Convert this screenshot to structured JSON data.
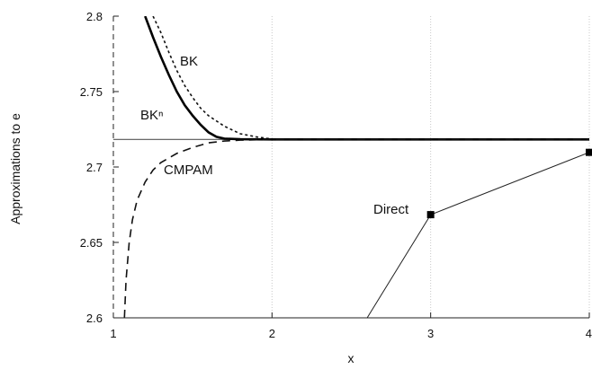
{
  "chart_data": {
    "type": "line",
    "xlabel": "x",
    "ylabel": "Approximations to e",
    "xlim": [
      1,
      4
    ],
    "ylim": [
      2.6,
      2.8
    ],
    "x_ticks": [
      "1",
      "2",
      "3",
      "4"
    ],
    "y_ticks": [
      "2.6",
      "2.65",
      "2.7",
      "2.75",
      "2.8"
    ],
    "reference_value": 2.71828,
    "grid": "vertical gridlines at x = 2, 3, 4",
    "series": [
      {
        "name": "BK",
        "style": "dotted",
        "x": [
          1.25,
          1.3,
          1.35,
          1.4,
          1.45,
          1.5,
          1.55,
          1.6,
          1.7,
          1.8,
          1.9,
          2.0,
          2.2,
          2.5,
          3.0,
          4.0
        ],
        "y": [
          2.8,
          2.789,
          2.776,
          2.764,
          2.754,
          2.746,
          2.739,
          2.734,
          2.727,
          2.722,
          2.72,
          2.7185,
          2.7183,
          2.7183,
          2.7183,
          2.7183
        ]
      },
      {
        "name": "BKⁿ",
        "style": "solid-thick",
        "x": [
          1.2,
          1.25,
          1.3,
          1.35,
          1.4,
          1.45,
          1.5,
          1.55,
          1.6,
          1.65,
          1.7,
          1.8,
          2.0,
          2.5,
          3.0,
          4.0
        ],
        "y": [
          2.8,
          2.786,
          2.773,
          2.761,
          2.75,
          2.741,
          2.734,
          2.728,
          2.723,
          2.72,
          2.7188,
          2.7184,
          2.7183,
          2.7183,
          2.7183,
          2.7183
        ]
      },
      {
        "name": "CMPAM",
        "style": "dashed",
        "x": [
          1.07,
          1.08,
          1.1,
          1.12,
          1.15,
          1.2,
          1.25,
          1.3,
          1.4,
          1.5,
          1.6,
          1.7,
          1.8,
          2.0,
          2.5,
          3.0,
          4.0
        ],
        "y": [
          2.6,
          2.625,
          2.65,
          2.665,
          2.678,
          2.69,
          2.698,
          2.703,
          2.709,
          2.713,
          2.716,
          2.7172,
          2.7178,
          2.7182,
          2.7183,
          2.7183,
          2.7183
        ]
      },
      {
        "name": "Direct",
        "style": "thin-with-square-markers",
        "x": [
          2.6,
          3.0,
          4.0
        ],
        "y": [
          2.6,
          2.6684,
          2.7097
        ],
        "markers": [
          false,
          true,
          true
        ]
      }
    ]
  }
}
